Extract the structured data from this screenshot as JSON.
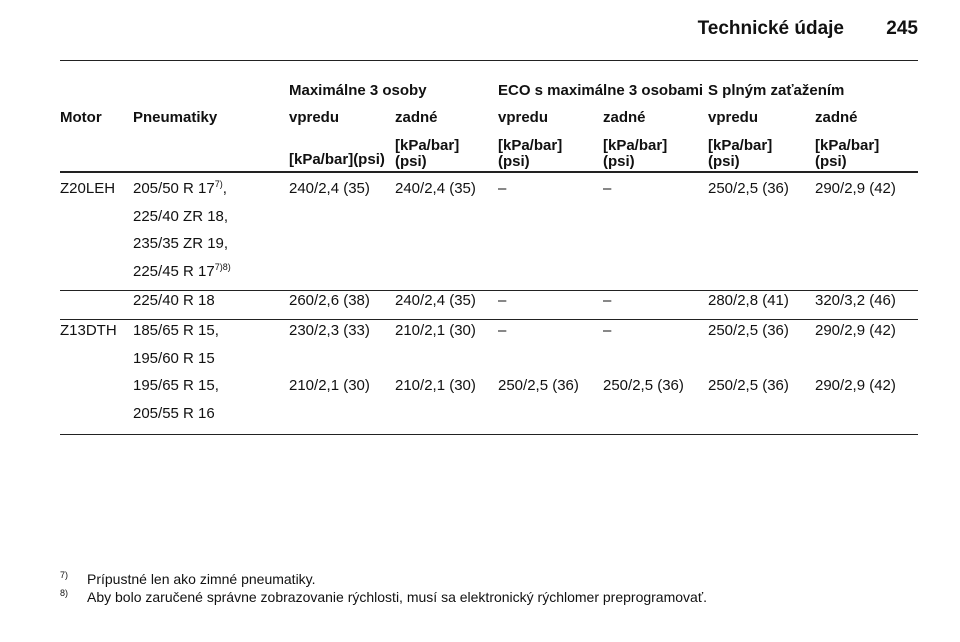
{
  "header": {
    "title": "Technické údaje",
    "page": "245"
  },
  "table": {
    "group_headers": [
      "Maximálne 3 osoby",
      "ECO s maximálne 3 osobami",
      "S plným zaťažením"
    ],
    "columns": [
      "Motor",
      "Pneumatiky",
      "vpredu",
      "zadné",
      "vpredu",
      "zadné",
      "vpredu",
      "zadné"
    ],
    "units": [
      "[kPa/bar](psi)",
      "[kPa/bar]\n(psi)",
      "[kPa/bar]\n(psi)",
      "[kPa/bar]\n(psi)",
      "[kPa/bar]\n(psi)",
      "[kPa/bar]\n(psi)"
    ],
    "rows": [
      {
        "motor": "Z20LEH",
        "tires": [
          {
            "text": "205/50 R 17",
            "note": "7)",
            "after": ","
          },
          {
            "text": "225/40 ZR 18,"
          },
          {
            "text": "235/35 ZR 19,"
          },
          {
            "text": "225/45 R 17",
            "note": "7)8)"
          }
        ],
        "values": [
          "240/2,4 (35)",
          "240/2,4 (35)",
          "–",
          "–",
          "250/2,5 (36)",
          "290/2,9 (42)"
        ]
      },
      {
        "tires": [
          {
            "text": "225/40 R 18"
          }
        ],
        "values": [
          "260/2,6 (38)",
          "240/2,4 (35)",
          "–",
          "–",
          "280/2,8 (41)",
          "320/3,2 (46)"
        ]
      },
      {
        "motor": "Z13DTH",
        "tires": [
          {
            "text": "185/65 R 15,"
          },
          {
            "text": "195/60 R 15"
          }
        ],
        "values": [
          "230/2,3 (33)",
          "210/2,1 (30)",
          "–",
          "–",
          "250/2,5 (36)",
          "290/2,9 (42)"
        ]
      },
      {
        "tires": [
          {
            "text": "195/65 R 15,"
          },
          {
            "text": "205/55 R 16"
          }
        ],
        "values": [
          "210/2,1 (30)",
          "210/2,1 (30)",
          "250/2,5 (36)",
          "250/2,5 (36)",
          "250/2,5 (36)",
          "290/2,9 (42)"
        ]
      }
    ]
  },
  "footnotes": [
    {
      "mark": "7)",
      "text": "Prípustné len ako zimné pneumatiky."
    },
    {
      "mark": "8)",
      "text": "Aby bolo zaručené správne zobrazovanie rýchlosti, musí sa elektronický rýchlomer preprogramovať."
    }
  ]
}
